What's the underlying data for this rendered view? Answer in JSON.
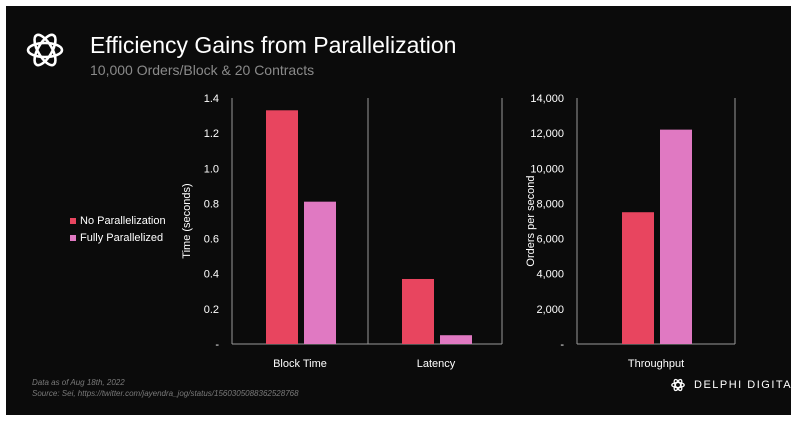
{
  "header": {
    "title": "Efficiency Gains from Parallelization",
    "subtitle": "10,000 Orders/Block & 20 Contracts"
  },
  "legend": [
    {
      "label": "No Parallelization",
      "color": "#e8455f"
    },
    {
      "label": "Fully Parallelized",
      "color": "#e079c2"
    }
  ],
  "footer": {
    "date_line": "Data as of Aug 18th, 2022",
    "source_line": "Source: Sei, https://twitter.com/jayendra_jog/status/1560305088362528768"
  },
  "brand": {
    "name": "DELPHI DIGITAL",
    "icon": "delphi-knot-icon"
  },
  "chart_data": [
    {
      "type": "bar",
      "categories": [
        "Block Time",
        "Latency"
      ],
      "series": [
        {
          "name": "No Parallelization",
          "values": [
            1.33,
            0.37
          ]
        },
        {
          "name": "Fully Parallelized",
          "values": [
            0.81,
            0.05
          ]
        }
      ],
      "ylabel": "Time (seconds)",
      "ylim": [
        0,
        1.4
      ],
      "yticks": [
        "-",
        "0.2",
        "0.4",
        "0.6",
        "0.8",
        "1.0",
        "1.2",
        "1.4"
      ],
      "grid": false,
      "legend": "left"
    },
    {
      "type": "bar",
      "categories": [
        "Throughput"
      ],
      "series": [
        {
          "name": "No Parallelization",
          "values": [
            7500
          ]
        },
        {
          "name": "Fully Parallelized",
          "values": [
            12200
          ]
        }
      ],
      "ylabel": "Orders per second",
      "ylim": [
        0,
        14000
      ],
      "yticks": [
        "-",
        "2,000",
        "4,000",
        "6,000",
        "8,000",
        "10,000",
        "12,000",
        "14,000"
      ],
      "grid": false,
      "legend": "left"
    }
  ]
}
